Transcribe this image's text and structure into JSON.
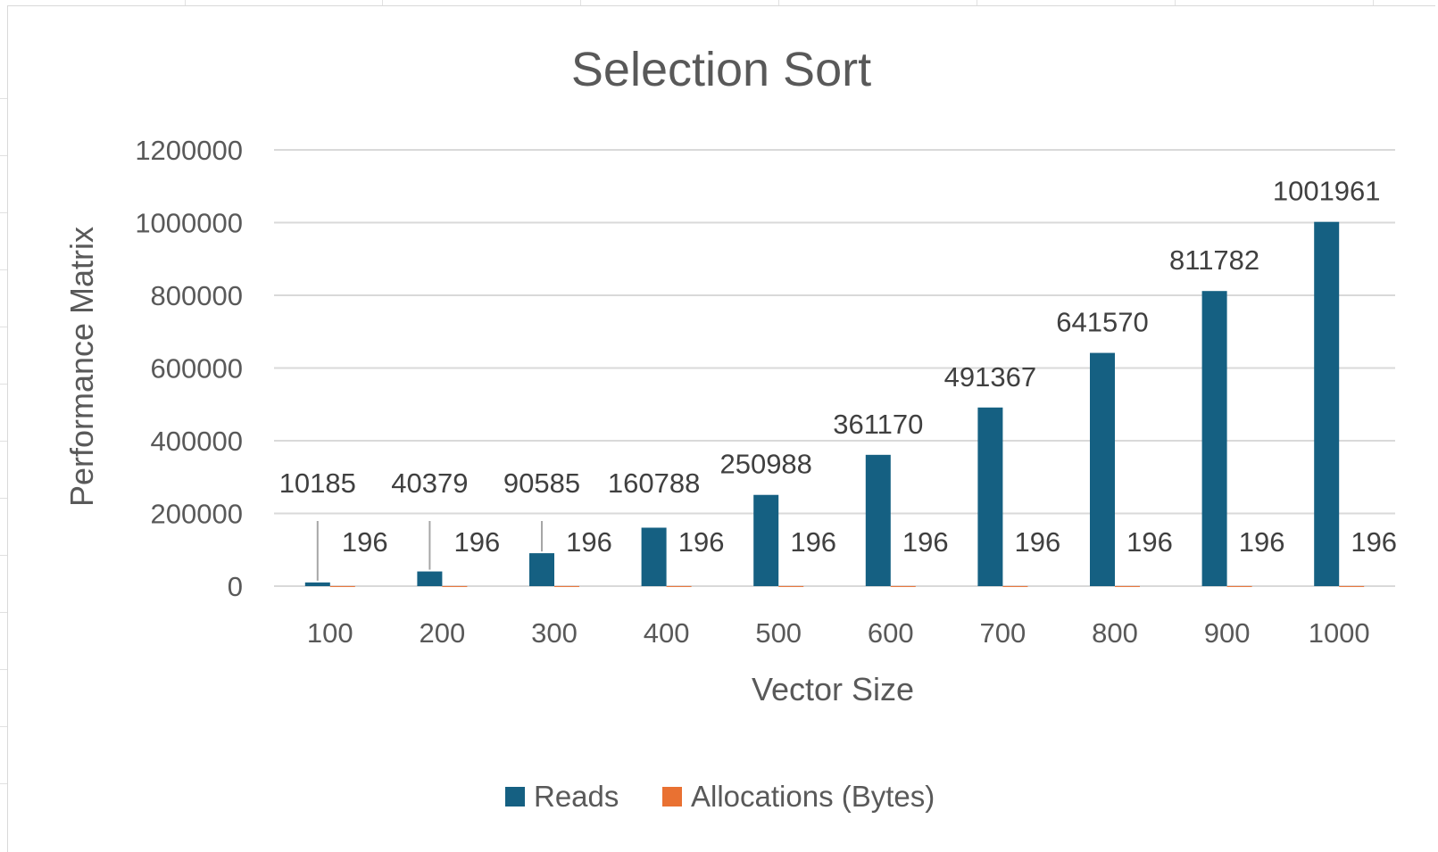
{
  "chart_data": {
    "type": "bar",
    "title": "Selection Sort",
    "xlabel": "Vector Size",
    "ylabel": "Performance Matrix",
    "categories": [
      "100",
      "200",
      "300",
      "400",
      "500",
      "600",
      "700",
      "800",
      "900",
      "1000"
    ],
    "series": [
      {
        "name": "Reads",
        "color": "#156082",
        "values": [
          10185,
          40379,
          90585,
          160788,
          250988,
          361170,
          491367,
          641570,
          811782,
          1001961
        ]
      },
      {
        "name": "Allocations (Bytes)",
        "color": "#e97132",
        "values": [
          196,
          196,
          196,
          196,
          196,
          196,
          196,
          196,
          196,
          196
        ]
      }
    ],
    "ylim": [
      0,
      1200000
    ],
    "yticks": [
      0,
      200000,
      400000,
      600000,
      800000,
      1000000,
      1200000
    ],
    "grid": true,
    "legend": "bottom"
  }
}
